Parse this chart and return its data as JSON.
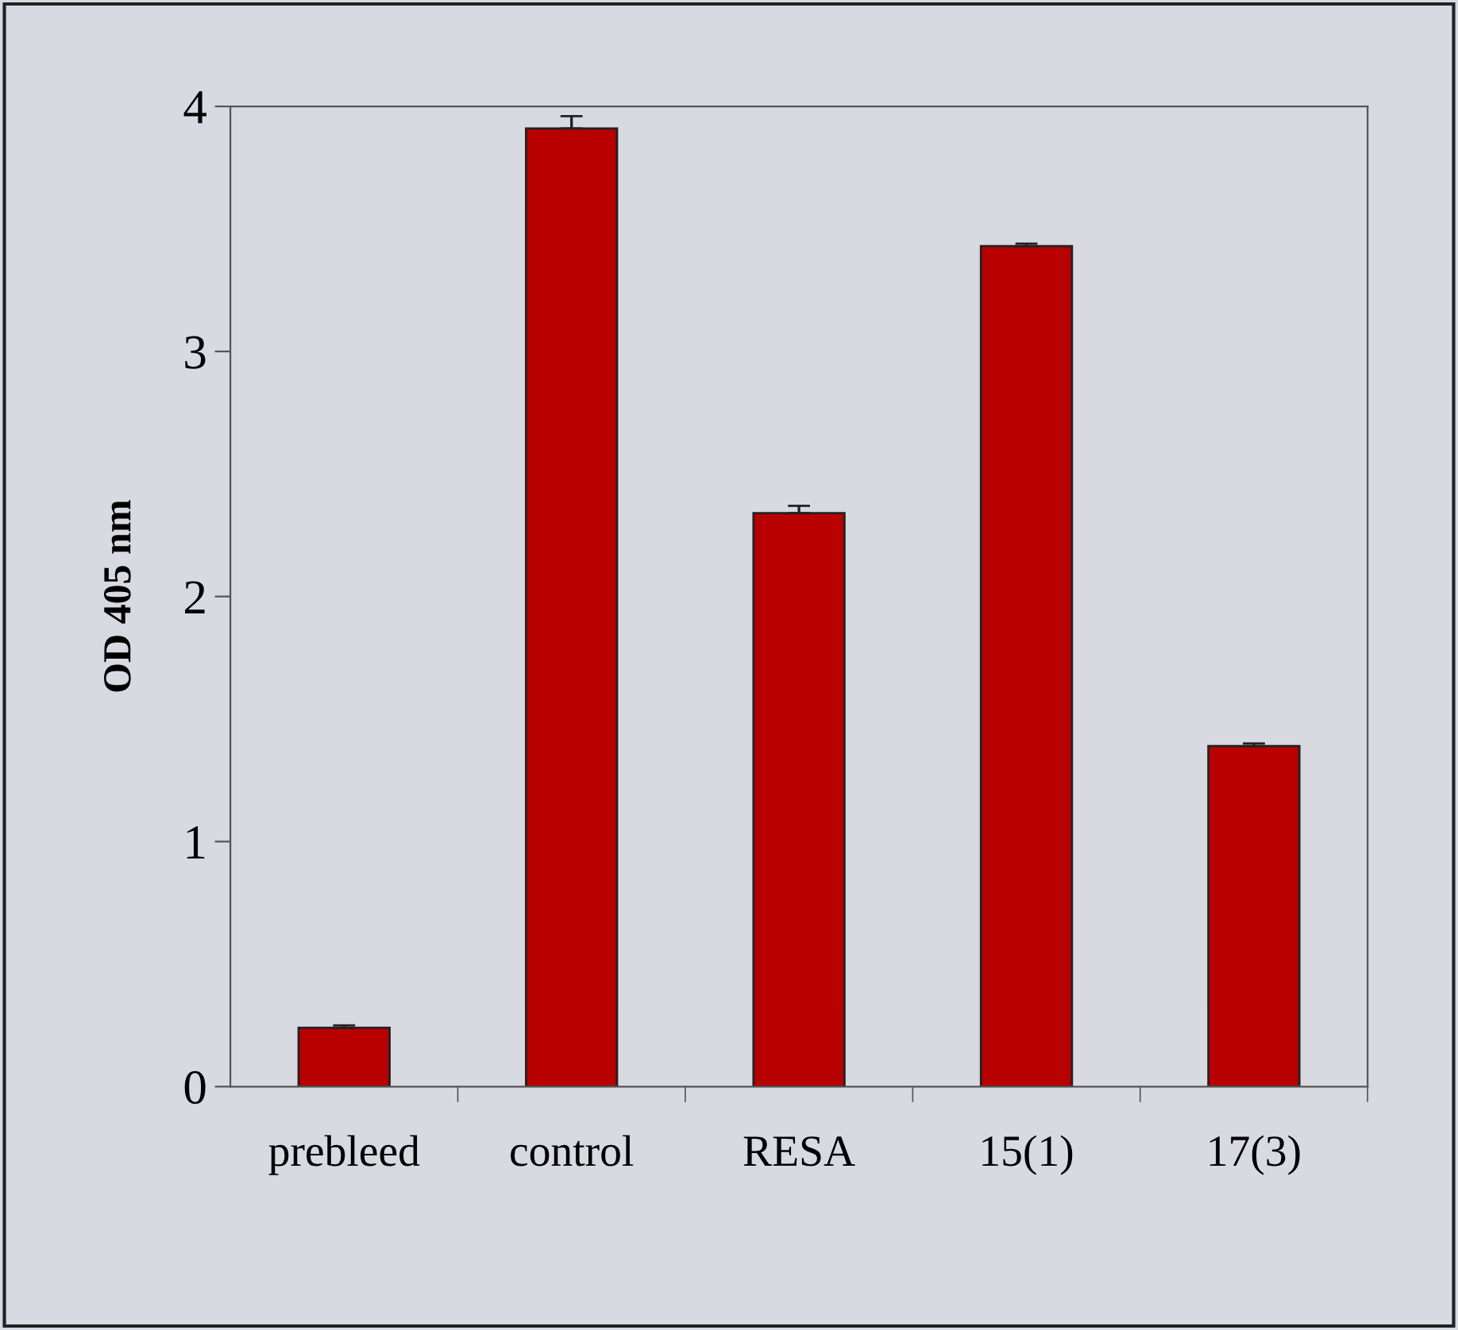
{
  "chart_data": {
    "type": "bar",
    "ylabel": "OD 405 nm",
    "categories": [
      "prebleed",
      "control",
      "RESA",
      "15(1)",
      "17(3)"
    ],
    "values": [
      0.24,
      3.91,
      2.34,
      3.43,
      1.39
    ],
    "errors": [
      [
        0.24,
        0.25
      ],
      [
        3.91,
        3.96
      ],
      [
        2.34,
        2.37
      ],
      [
        3.43,
        3.44
      ],
      [
        1.39,
        1.4
      ]
    ],
    "color": "#b80000",
    "ylim": [
      0,
      4
    ],
    "yticks": [
      0,
      1,
      2,
      3,
      4
    ],
    "grid": false,
    "legend": false
  }
}
